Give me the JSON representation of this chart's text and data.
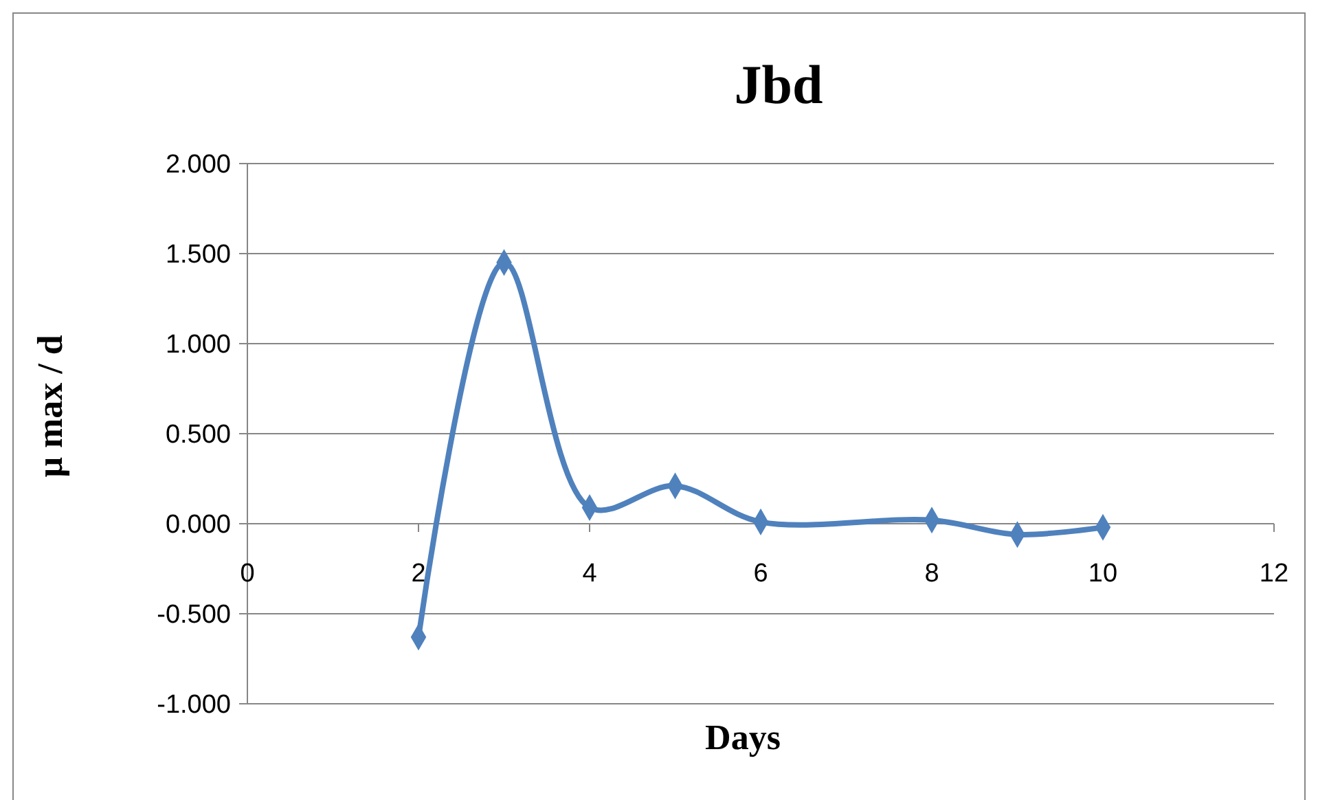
{
  "chart_data": {
    "type": "line",
    "title": "Jbd",
    "xlabel": "Days",
    "ylabel": "μ max / d",
    "x": [
      2,
      3,
      4,
      5,
      6,
      8,
      9,
      10
    ],
    "series": [
      {
        "color": "#4f81bd",
        "values": [
          -0.63,
          1.45,
          0.09,
          0.21,
          0.01,
          0.02,
          -0.06,
          -0.02
        ]
      }
    ],
    "xlim": [
      0,
      12
    ],
    "xticks": [
      0,
      2,
      4,
      6,
      8,
      10,
      12
    ],
    "ylim": [
      -1,
      2
    ],
    "yticks": [
      {
        "value": -1,
        "label": "-1.000"
      },
      {
        "value": -0.5,
        "label": "-0.500"
      },
      {
        "value": 0,
        "label": "0.000"
      },
      {
        "value": 0.5,
        "label": "0.500"
      },
      {
        "value": 1,
        "label": "1.000"
      },
      {
        "value": 1.5,
        "label": "1.500"
      },
      {
        "value": 2,
        "label": "2.000"
      }
    ],
    "grid": "y",
    "marker": "diamond",
    "line_style": "solid"
  }
}
